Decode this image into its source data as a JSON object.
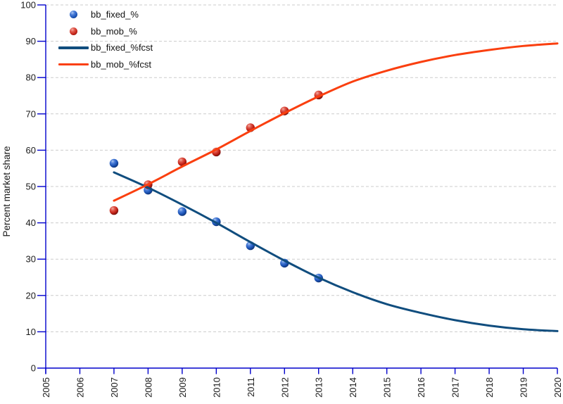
{
  "chart_data": {
    "type": "scatter",
    "title": "",
    "xlabel": "",
    "ylabel": "Percent market share",
    "xlim": [
      2005,
      2020
    ],
    "ylim": [
      0,
      100
    ],
    "x_ticks": [
      2005,
      2006,
      2007,
      2008,
      2009,
      2010,
      2011,
      2012,
      2013,
      2014,
      2015,
      2016,
      2017,
      2018,
      2019,
      2020
    ],
    "y_ticks": [
      0,
      10,
      20,
      30,
      40,
      50,
      60,
      70,
      80,
      90,
      100
    ],
    "grid": {
      "horizontal": true,
      "vertical": false,
      "style": "dashed",
      "color": "#cccccc"
    },
    "legend_position": "top-left",
    "axis_color": "#0000cc",
    "tick_label_color": "#1a1a1a",
    "series": [
      {
        "name": "bb_fixed_%",
        "kind": "scatter",
        "marker": "sphere",
        "color": "#1d55b8",
        "gradient": [
          "#adc8f0",
          "#4d7fd9",
          "#1d55b8",
          "#0a2a66"
        ],
        "x": [
          2007,
          2008,
          2009,
          2010,
          2011,
          2012,
          2013
        ],
        "values": [
          56.4,
          49.0,
          43.1,
          40.3,
          33.7,
          28.9,
          24.8
        ]
      },
      {
        "name": "bb_mob_%",
        "kind": "scatter",
        "marker": "sphere",
        "color": "#c42318",
        "gradient": [
          "#f3aca3",
          "#e05a4d",
          "#c42318",
          "#5f0a08"
        ],
        "x": [
          2007,
          2008,
          2009,
          2010,
          2011,
          2012,
          2013
        ],
        "values": [
          43.4,
          50.5,
          56.8,
          59.5,
          66.2,
          70.8,
          75.2
        ]
      },
      {
        "name": "bb_fixed_%fcst",
        "kind": "line",
        "color": "#104d7e",
        "x": [
          2007,
          2008,
          2009,
          2010,
          2011,
          2012,
          2013,
          2014,
          2015,
          2016,
          2017,
          2018,
          2019,
          2020
        ],
        "values": [
          53.9,
          49.7,
          45.0,
          40.0,
          34.7,
          29.6,
          24.9,
          20.9,
          17.6,
          15.2,
          13.2,
          11.7,
          10.7,
          10.2
        ]
      },
      {
        "name": "bb_mob_%fcst",
        "kind": "line",
        "color": "#fa3f0f",
        "x": [
          2007,
          2008,
          2009,
          2010,
          2011,
          2012,
          2013,
          2014,
          2015,
          2016,
          2017,
          2018,
          2019,
          2020
        ],
        "values": [
          46.1,
          50.6,
          55.5,
          60.2,
          65.3,
          70.2,
          74.8,
          78.9,
          81.9,
          84.3,
          86.2,
          87.6,
          88.7,
          89.4
        ]
      }
    ]
  }
}
